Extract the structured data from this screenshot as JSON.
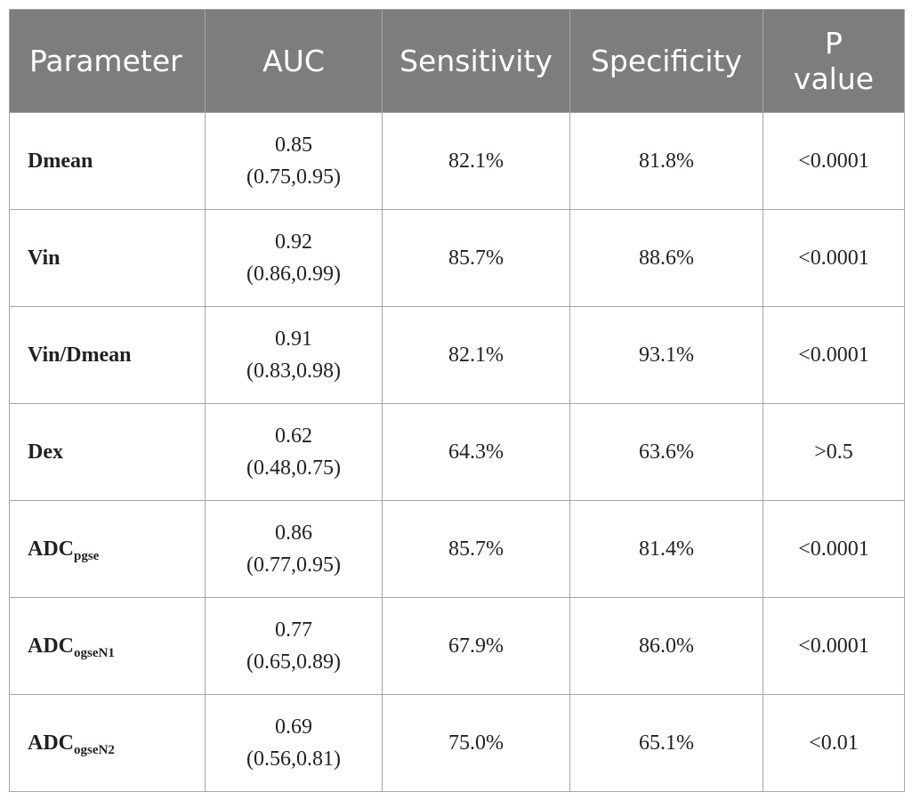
{
  "table": {
    "headers": {
      "parameter": "Parameter",
      "auc": "AUC",
      "sensitivity": "Sensitivity",
      "specificity": "Specificity",
      "p_value_line1": "P",
      "p_value_line2": "value"
    },
    "rows": [
      {
        "param": "Dmean",
        "param_sub": "",
        "auc": "0.85",
        "auc_ci": "(0.75,0.95)",
        "sensitivity": "82.1%",
        "specificity": "81.8%",
        "p_value": "<0.0001"
      },
      {
        "param": "Vin",
        "param_sub": "",
        "auc": "0.92",
        "auc_ci": "(0.86,0.99)",
        "sensitivity": "85.7%",
        "specificity": "88.6%",
        "p_value": "<0.0001"
      },
      {
        "param": "Vin/Dmean",
        "param_sub": "",
        "auc": "0.91",
        "auc_ci": "(0.83,0.98)",
        "sensitivity": "82.1%",
        "specificity": "93.1%",
        "p_value": "<0.0001"
      },
      {
        "param": "Dex",
        "param_sub": "",
        "auc": "0.62",
        "auc_ci": "(0.48,0.75)",
        "sensitivity": "64.3%",
        "specificity": "63.6%",
        "p_value": ">0.5"
      },
      {
        "param": "ADC",
        "param_sub": "pgse",
        "auc": "0.86",
        "auc_ci": "(0.77,0.95)",
        "sensitivity": "85.7%",
        "specificity": "81.4%",
        "p_value": "<0.0001"
      },
      {
        "param": "ADC",
        "param_sub": "ogseN1",
        "auc": "0.77",
        "auc_ci": "(0.65,0.89)",
        "sensitivity": "67.9%",
        "specificity": "86.0%",
        "p_value": "<0.0001"
      },
      {
        "param": "ADC",
        "param_sub": "ogseN2",
        "auc": "0.69",
        "auc_ci": "(0.56,0.81)",
        "sensitivity": "75.0%",
        "specificity": "65.1%",
        "p_value": "<0.01"
      }
    ]
  }
}
